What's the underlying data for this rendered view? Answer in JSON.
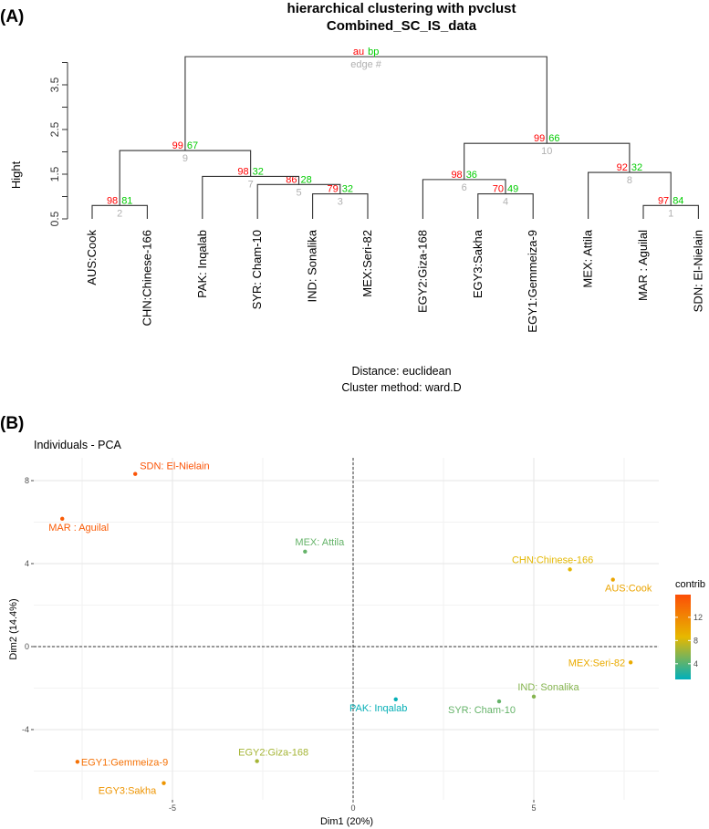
{
  "figure": {
    "panel_a_label": "(A)",
    "panel_b_label": "(B)"
  },
  "chart_data": [
    {
      "type": "dendrogram",
      "title": "hierarchical clustering with pvclust",
      "subtitle": "Combined_SC_IS_data",
      "ylabel": "Hight",
      "yticks": [
        0.5,
        1.5,
        2.5,
        3.5
      ],
      "ylim": [
        0.5,
        4.2
      ],
      "footer_lines": [
        "Distance:  euclidean",
        "Cluster method: ward.D"
      ],
      "legend": {
        "au": "au",
        "bp": "bp",
        "edge": "edge #"
      },
      "colors": {
        "au": "#ff0000",
        "bp": "#00cc00",
        "edge": "#b0b0b0"
      },
      "leaves": [
        "AUS:Cook",
        "CHN:Chinese-166",
        "PAK: Inqalab",
        "SYR: Cham-10",
        "IND: Sonalika",
        "MEX:Seri-82",
        "EGY2:Giza-168",
        "EGY3:Sakha",
        "EGY1:Gemmeiza-9",
        "MEX: Attila",
        "MAR : Aguilal",
        "SDN: El-Nielain"
      ],
      "merges": [
        {
          "edge": "1",
          "children": [
            "L10",
            "L11"
          ],
          "height": 0.8,
          "au": "97",
          "bp": "84"
        },
        {
          "edge": "2",
          "children": [
            "L0",
            "L1"
          ],
          "height": 0.8,
          "au": "98",
          "bp": "81"
        },
        {
          "edge": "3",
          "children": [
            "L4",
            "L5"
          ],
          "height": 1.06,
          "au": "79",
          "bp": "32"
        },
        {
          "edge": "4",
          "children": [
            "L7",
            "L8"
          ],
          "height": 1.06,
          "au": "70",
          "bp": "49"
        },
        {
          "edge": "5",
          "children": [
            "L3",
            "E3"
          ],
          "height": 1.27,
          "au": "86",
          "bp": "28"
        },
        {
          "edge": "6",
          "children": [
            "L6",
            "E4"
          ],
          "height": 1.38,
          "au": "98",
          "bp": "36"
        },
        {
          "edge": "7",
          "children": [
            "L2",
            "E5"
          ],
          "height": 1.45,
          "au": "98",
          "bp": "32"
        },
        {
          "edge": "8",
          "children": [
            "L9",
            "E1"
          ],
          "height": 1.54,
          "au": "92",
          "bp": "32"
        },
        {
          "edge": "9",
          "children": [
            "E2",
            "E7"
          ],
          "height": 2.03,
          "au": "99",
          "bp": "67"
        },
        {
          "edge": "10",
          "children": [
            "E6",
            "E8"
          ],
          "height": 2.19,
          "au": "99",
          "bp": "66"
        },
        {
          "edge": "root",
          "children": [
            "E9",
            "E10"
          ],
          "height": 4.13,
          "au": "au",
          "bp": "bp",
          "edge_label": "edge #"
        }
      ]
    },
    {
      "type": "scatter",
      "title": "Individuals - PCA",
      "xlabel": "Dim1 (20%)",
      "ylabel": "Dim2 (14.4%)",
      "xticks": [
        -5,
        0,
        5
      ],
      "yticks": [
        -4,
        0,
        4,
        8
      ],
      "xlim": [
        -8.8,
        8.3
      ],
      "ylim": [
        -7.4,
        9.1
      ],
      "grid": true,
      "reference_lines": {
        "x": 0,
        "y": 0,
        "style": "dashed"
      },
      "legend": {
        "title": "contrib",
        "ticks": [
          4,
          8,
          12
        ],
        "range": [
          1.3,
          15.9
        ],
        "placement": "right",
        "gradient": [
          "#00AFBB",
          "#E7B800",
          "#FC4E07"
        ]
      },
      "points": [
        {
          "label": "SDN: El-Nielain",
          "x": -6.03,
          "y": 8.32,
          "contrib": 15.5
        },
        {
          "label": "MAR : Aguilal",
          "x": -8.05,
          "y": 6.16,
          "contrib": 15.0
        },
        {
          "label": "MEX: Attila",
          "x": -1.33,
          "y": 4.58,
          "contrib": 4.5
        },
        {
          "label": "CHN:Chinese-166",
          "x": 6.0,
          "y": 3.72,
          "contrib": 8.5
        },
        {
          "label": "AUS:Cook",
          "x": 7.19,
          "y": 3.23,
          "contrib": 10.0
        },
        {
          "label": "MEX:Seri-82",
          "x": 7.68,
          "y": -0.76,
          "contrib": 9.5
        },
        {
          "label": "IND: Sonalika",
          "x": 5.0,
          "y": -2.41,
          "contrib": 5.5
        },
        {
          "label": "SYR: Cham-10",
          "x": 4.04,
          "y": -2.64,
          "contrib": 4.5
        },
        {
          "label": "PAK: Inqalab",
          "x": 1.18,
          "y": -2.54,
          "contrib": 1.5
        },
        {
          "label": "EGY2:Giza-168",
          "x": -2.66,
          "y": -5.52,
          "contrib": 6.5
        },
        {
          "label": "EGY1:Gemmeiza-9",
          "x": -7.63,
          "y": -5.55,
          "contrib": 13.5
        },
        {
          "label": "EGY3:Sakha",
          "x": -5.24,
          "y": -6.58,
          "contrib": 11.0
        }
      ]
    }
  ]
}
